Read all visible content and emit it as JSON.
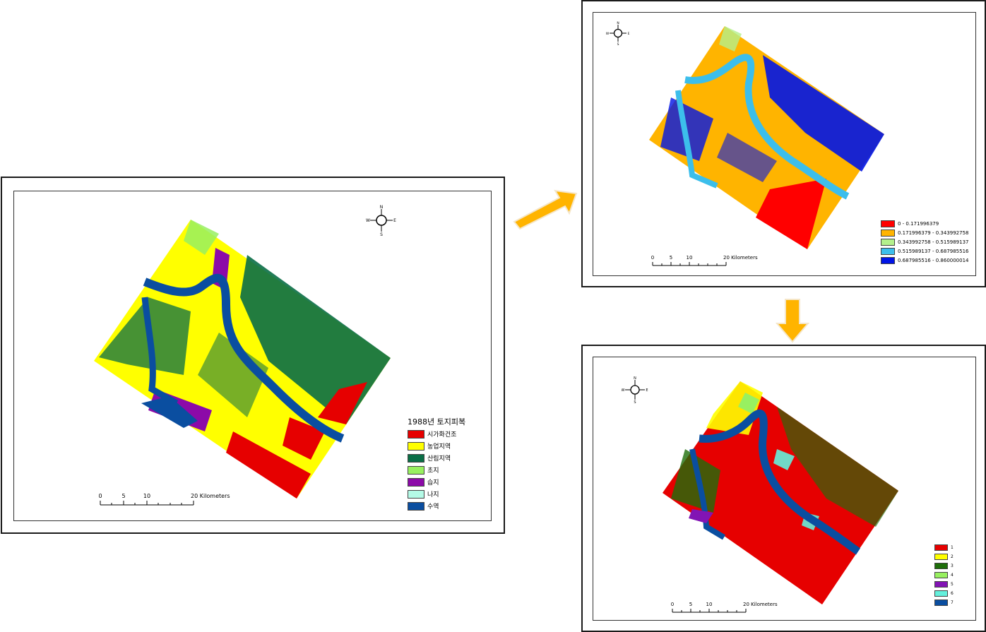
{
  "left_map": {
    "legend": {
      "title": "1988년 토지피복",
      "items": [
        {
          "label": "시가화건조",
          "color": "#e60000"
        },
        {
          "label": "농업지역",
          "color": "#ffff00"
        },
        {
          "label": "산림지역",
          "color": "#0a6e46"
        },
        {
          "label": "초지",
          "color": "#98f060"
        },
        {
          "label": "습지",
          "color": "#8c0aa8"
        },
        {
          "label": "나지",
          "color": "#b4fae6"
        },
        {
          "label": "수역",
          "color": "#0a4ea0"
        }
      ]
    },
    "scale": {
      "ticks": [
        "0",
        "5",
        "10"
      ],
      "end": "20 Kilometers"
    },
    "compass": {
      "n": "N",
      "s": "S",
      "e": "E",
      "w": "W"
    }
  },
  "top_right_map": {
    "legend": {
      "items": [
        {
          "label": "0 - 0.171996379",
          "color": "#ff0000"
        },
        {
          "label": "0.171996379 - 0.343992758",
          "color": "#ffb400"
        },
        {
          "label": "0.343992758 - 0.515989137",
          "color": "#b4f08c"
        },
        {
          "label": "0.515989137 - 0.687985516",
          "color": "#3cbeeb"
        },
        {
          "label": "0.687985516 - 0.860000014",
          "color": "#0014e6"
        }
      ]
    },
    "scale": {
      "ticks": [
        "0",
        "5",
        "10"
      ],
      "end": "20 Kilometers"
    },
    "compass": {
      "n": "N",
      "s": "S",
      "e": "E",
      "w": "W"
    }
  },
  "bottom_right_map": {
    "legend": {
      "items": [
        {
          "label": "1",
          "color": "#e60000"
        },
        {
          "label": "2",
          "color": "#ffff00"
        },
        {
          "label": "3",
          "color": "#1e6e0a"
        },
        {
          "label": "4",
          "color": "#98f060"
        },
        {
          "label": "5",
          "color": "#8214b4"
        },
        {
          "label": "6",
          "color": "#64f0dc"
        },
        {
          "label": "7",
          "color": "#0a4ea0"
        }
      ]
    },
    "scale": {
      "ticks": [
        "0",
        "5",
        "10"
      ],
      "end": "20 Kilometers"
    },
    "compass": {
      "n": "N",
      "s": "S",
      "e": "E",
      "w": "W"
    }
  },
  "arrows": {
    "color": "#ffb400"
  }
}
